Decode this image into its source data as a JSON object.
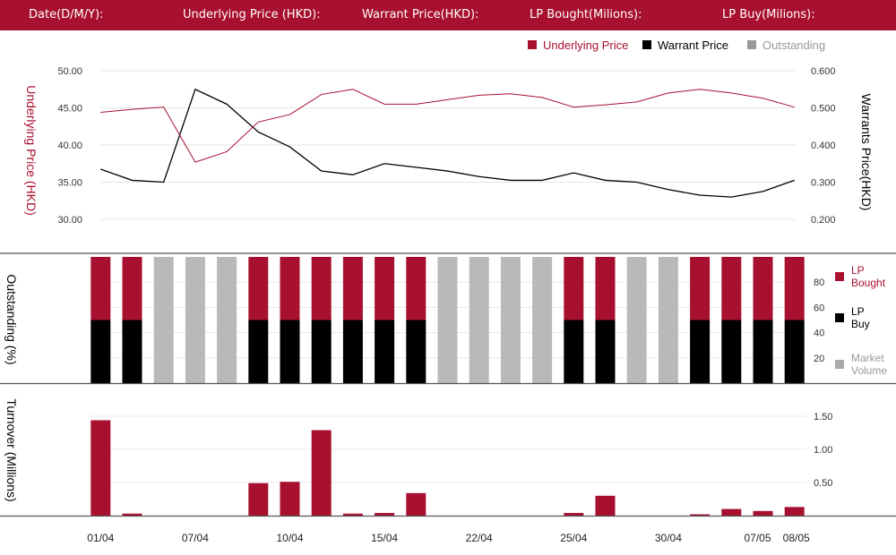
{
  "header": {
    "date_label": "Date(D/M/Y):",
    "underlying_label": "Underlying Price (HKD):",
    "warrant_label": "Warrant  Price(HKD):",
    "lp_bought_label": "LP Bought(Milions):",
    "lp_buy_label": "LP Buy(Milions):"
  },
  "colors": {
    "red": "#a8102f",
    "black": "#000000",
    "gray": "#b9b9b9",
    "header_bg": "#a8102f"
  },
  "chart_data": [
    {
      "type": "line",
      "legend": [
        "Underlying Price",
        "Warrant  Price",
        "Outstanding"
      ],
      "legend_placement": "top-right",
      "ylabel_left": "Underlying Price (HKD)",
      "ylabel_right": "Warrants  Price(HKD)",
      "y_ticks_left": [
        "50.00",
        "45.00",
        "40.00",
        "35.00",
        "30.00"
      ],
      "y_ticks_right": [
        "0.600",
        "0.500",
        "0.400",
        "0.300",
        "0.200"
      ],
      "ylim_left": [
        30,
        50
      ],
      "ylim_right": [
        0.2,
        0.6
      ],
      "series": [
        {
          "name": "Underlying Price",
          "axis": "left",
          "values": [
            44.4,
            44.8,
            45.1,
            37.7,
            39.1,
            43.1,
            44.1,
            46.8,
            47.5,
            45.5,
            45.5,
            46.1,
            46.7,
            46.9,
            46.4,
            45.1,
            45.4,
            45.8,
            47.0,
            47.5,
            47.0,
            46.3,
            45.1
          ]
        },
        {
          "name": "Warrant  Price",
          "axis": "right",
          "values": [
            0.335,
            0.305,
            0.3,
            0.55,
            0.51,
            0.435,
            0.395,
            0.33,
            0.32,
            0.35,
            0.34,
            0.33,
            0.315,
            0.305,
            0.305,
            0.325,
            0.305,
            0.3,
            0.28,
            0.265,
            0.26,
            0.275,
            0.305
          ]
        }
      ]
    },
    {
      "type": "bar",
      "stacked": true,
      "ylabel": "Outstanding (%)",
      "y_ticks": [
        "80",
        "60",
        "40",
        "20"
      ],
      "ylim": [
        0,
        100
      ],
      "legend": [
        "LP Bought",
        "LP Buy",
        "Market Volume"
      ],
      "legend_placement": "right",
      "series": [
        {
          "name": "LP Buy",
          "values": [
            50,
            50,
            0,
            0,
            0,
            50,
            50,
            50,
            50,
            50,
            50,
            0,
            0,
            0,
            0,
            50,
            50,
            0,
            0,
            50,
            50,
            50,
            50
          ]
        },
        {
          "name": "LP Bought",
          "values": [
            50,
            50,
            0,
            0,
            0,
            50,
            50,
            50,
            50,
            50,
            50,
            0,
            0,
            0,
            0,
            50,
            50,
            0,
            0,
            50,
            50,
            50,
            50
          ]
        },
        {
          "name": "Market Volume",
          "values": [
            0,
            0,
            100,
            100,
            100,
            0,
            0,
            0,
            0,
            0,
            0,
            100,
            100,
            100,
            100,
            0,
            0,
            100,
            100,
            0,
            0,
            0,
            0
          ]
        }
      ]
    },
    {
      "type": "bar",
      "ylabel": "Turnover (Millions)",
      "y_ticks": [
        "1.50",
        "1.00",
        "0.50"
      ],
      "ylim": [
        0,
        1.6
      ],
      "values": [
        1.44,
        0.03,
        0,
        0,
        0,
        0.49,
        0.51,
        1.29,
        0.03,
        0.04,
        0.34,
        0,
        0,
        0,
        0,
        0.04,
        0.3,
        0,
        0,
        0.02,
        0.1,
        0.07,
        0.13
      ],
      "x_tick_labels": [
        "01/04",
        "07/04",
        "10/04",
        "15/04",
        "22/04",
        "25/04",
        "30/04",
        "07/05",
        "08/05"
      ]
    }
  ]
}
